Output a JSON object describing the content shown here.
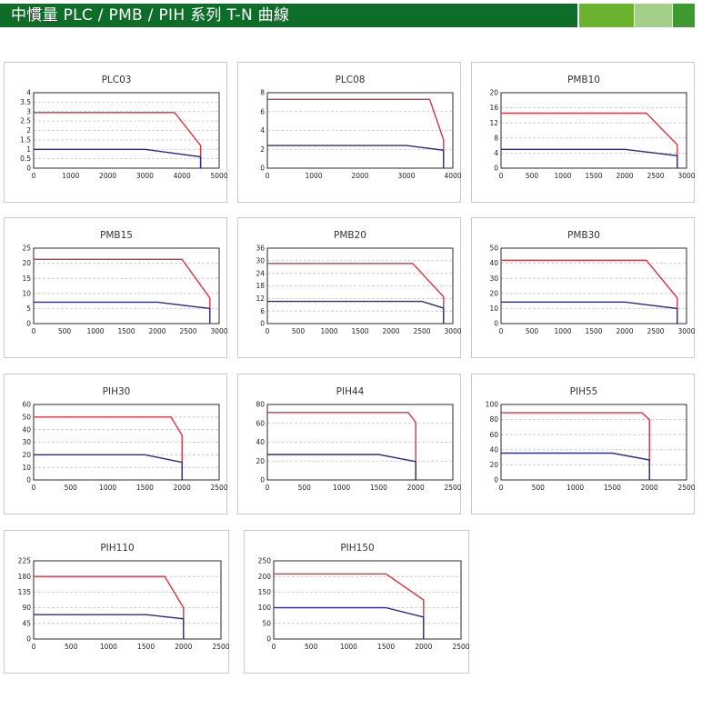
{
  "header": {
    "title": "中慣量 PLC / PMB / PIH 系列 T-N 曲線",
    "colors": {
      "main": "#0f6d2a",
      "band1": "#6bb22e",
      "band2": "#a3cf8a",
      "band3": "#3c9a31"
    }
  },
  "colors": {
    "peak": "#e0303c",
    "continuous": "#2c2c8a",
    "grid": "#c4c4c4"
  },
  "chart_data": [
    {
      "type": "line",
      "title": "PLC03",
      "xlim": [
        0,
        5000
      ],
      "ylim": [
        0,
        4
      ],
      "xticks": [
        "0",
        "1000",
        "2000",
        "3000",
        "4000",
        "5000"
      ],
      "yticks": [
        "0",
        "0.5",
        "1",
        "1.5",
        "2",
        "2.5",
        "3",
        "3.5",
        "4"
      ],
      "series": [
        {
          "x": [
            0,
            3800,
            4500,
            4500
          ],
          "y": [
            2.95,
            2.95,
            1.2,
            0
          ]
        },
        {
          "x": [
            0,
            3000,
            4500,
            4500
          ],
          "y": [
            1.0,
            1.0,
            0.6,
            0
          ]
        }
      ]
    },
    {
      "type": "line",
      "title": "PLC08",
      "xlim": [
        0,
        4000
      ],
      "ylim": [
        0,
        8
      ],
      "xticks": [
        "0",
        "1000",
        "2000",
        "3000",
        "4000"
      ],
      "yticks": [
        "0",
        "2",
        "4",
        "6",
        "8"
      ],
      "series": [
        {
          "x": [
            0,
            3500,
            3800,
            3800
          ],
          "y": [
            7.3,
            7.3,
            3.0,
            0
          ]
        },
        {
          "x": [
            0,
            3000,
            3800,
            3800
          ],
          "y": [
            2.4,
            2.4,
            1.9,
            0
          ]
        }
      ]
    },
    {
      "type": "line",
      "title": "PMB10",
      "xlim": [
        0,
        3000
      ],
      "ylim": [
        0,
        20
      ],
      "xticks": [
        "0",
        "500",
        "1000",
        "1500",
        "2000",
        "2500",
        "3000"
      ],
      "yticks": [
        "0",
        "4",
        "8",
        "12",
        "16",
        "20"
      ],
      "series": [
        {
          "x": [
            0,
            2350,
            2850,
            2850
          ],
          "y": [
            14.6,
            14.6,
            6.2,
            0
          ]
        },
        {
          "x": [
            0,
            2000,
            2850,
            2850
          ],
          "y": [
            5.0,
            5.0,
            3.3,
            0
          ]
        }
      ]
    },
    {
      "type": "line",
      "title": "PMB15",
      "xlim": [
        0,
        3000
      ],
      "ylim": [
        0,
        25
      ],
      "xticks": [
        "0",
        "500",
        "1000",
        "1500",
        "2000",
        "2500",
        "3000"
      ],
      "yticks": [
        "0",
        "5",
        "10",
        "15",
        "20",
        "25"
      ],
      "series": [
        {
          "x": [
            0,
            2400,
            2850,
            2850
          ],
          "y": [
            21.3,
            21.3,
            8.5,
            0
          ]
        },
        {
          "x": [
            0,
            2000,
            2850,
            2850
          ],
          "y": [
            7.1,
            7.1,
            5.0,
            0
          ]
        }
      ]
    },
    {
      "type": "line",
      "title": "PMB20",
      "xlim": [
        0,
        3000
      ],
      "ylim": [
        0,
        36
      ],
      "xticks": [
        "0",
        "500",
        "1000",
        "1500",
        "2000",
        "2500",
        "3000"
      ],
      "yticks": [
        "0",
        "6",
        "12",
        "18",
        "24",
        "30",
        "36"
      ],
      "series": [
        {
          "x": [
            0,
            2350,
            2850,
            2850
          ],
          "y": [
            28.7,
            28.7,
            12.8,
            0
          ]
        },
        {
          "x": [
            0,
            2500,
            2850,
            2850
          ],
          "y": [
            10.6,
            10.6,
            7.4,
            0
          ]
        }
      ]
    },
    {
      "type": "line",
      "title": "PMB30",
      "xlim": [
        0,
        3000
      ],
      "ylim": [
        0,
        50
      ],
      "xticks": [
        "0",
        "500",
        "1000",
        "1500",
        "2000",
        "2500",
        "3000"
      ],
      "yticks": [
        "0",
        "10",
        "20",
        "30",
        "40",
        "50"
      ],
      "series": [
        {
          "x": [
            0,
            2350,
            2850,
            2850
          ],
          "y": [
            42.0,
            42.0,
            17.0,
            0
          ]
        },
        {
          "x": [
            0,
            2000,
            2850,
            2850
          ],
          "y": [
            14.3,
            14.3,
            10.0,
            0
          ]
        }
      ]
    },
    {
      "type": "line",
      "title": "PIH30",
      "xlim": [
        0,
        2500
      ],
      "ylim": [
        0,
        60
      ],
      "xticks": [
        "0",
        "500",
        "1000",
        "1500",
        "2000",
        "2500"
      ],
      "yticks": [
        "0",
        "10",
        "20",
        "30",
        "40",
        "50",
        "60"
      ],
      "series": [
        {
          "x": [
            0,
            1850,
            2000,
            2000
          ],
          "y": [
            50.0,
            50.0,
            35.5,
            0
          ]
        },
        {
          "x": [
            0,
            1500,
            2000,
            2000
          ],
          "y": [
            20.0,
            20.0,
            14.0,
            0
          ]
        }
      ]
    },
    {
      "type": "line",
      "title": "PIH44",
      "xlim": [
        0,
        2500
      ],
      "ylim": [
        0,
        80
      ],
      "xticks": [
        "0",
        "500",
        "1000",
        "1500",
        "2000",
        "2500"
      ],
      "yticks": [
        "0",
        "20",
        "40",
        "60",
        "80"
      ],
      "series": [
        {
          "x": [
            0,
            1900,
            2000,
            2000
          ],
          "y": [
            71.5,
            71.5,
            61.0,
            0
          ]
        },
        {
          "x": [
            0,
            1500,
            2000,
            2000
          ],
          "y": [
            27.0,
            27.0,
            19.5,
            0
          ]
        }
      ]
    },
    {
      "type": "line",
      "title": "PIH55",
      "xlim": [
        0,
        2500
      ],
      "ylim": [
        0,
        100
      ],
      "xticks": [
        "0",
        "500",
        "1000",
        "1500",
        "2000",
        "2500"
      ],
      "yticks": [
        "0",
        "20",
        "40",
        "60",
        "80",
        "100"
      ],
      "series": [
        {
          "x": [
            0,
            1900,
            2000,
            2000
          ],
          "y": [
            89.0,
            89.0,
            80.0,
            0
          ]
        },
        {
          "x": [
            0,
            1500,
            2000,
            2000
          ],
          "y": [
            35.5,
            35.5,
            26.5,
            0
          ]
        }
      ]
    },
    {
      "type": "line",
      "title": "PIH110",
      "xlim": [
        0,
        2500
      ],
      "ylim": [
        0,
        225
      ],
      "xticks": [
        "0",
        "500",
        "1000",
        "1500",
        "2000",
        "2500"
      ],
      "yticks": [
        "0",
        "45",
        "90",
        "135",
        "180",
        "225"
      ],
      "series": [
        {
          "x": [
            0,
            1750,
            2000,
            2000
          ],
          "y": [
            180.0,
            180.0,
            90.0,
            0
          ]
        },
        {
          "x": [
            0,
            1500,
            2000,
            2000
          ],
          "y": [
            70.0,
            70.0,
            58.0,
            0
          ]
        }
      ]
    },
    {
      "type": "line",
      "title": "PIH150",
      "xlim": [
        0,
        2500
      ],
      "ylim": [
        0,
        250
      ],
      "xticks": [
        "0",
        "500",
        "1000",
        "1500",
        "2000",
        "2500"
      ],
      "yticks": [
        "0",
        "50",
        "100",
        "150",
        "200",
        "250"
      ],
      "series": [
        {
          "x": [
            0,
            1500,
            2000,
            2000
          ],
          "y": [
            208.0,
            208.0,
            125.0,
            0
          ]
        },
        {
          "x": [
            0,
            1500,
            2000,
            2000
          ],
          "y": [
            100.0,
            100.0,
            70.0,
            0
          ]
        }
      ]
    }
  ]
}
